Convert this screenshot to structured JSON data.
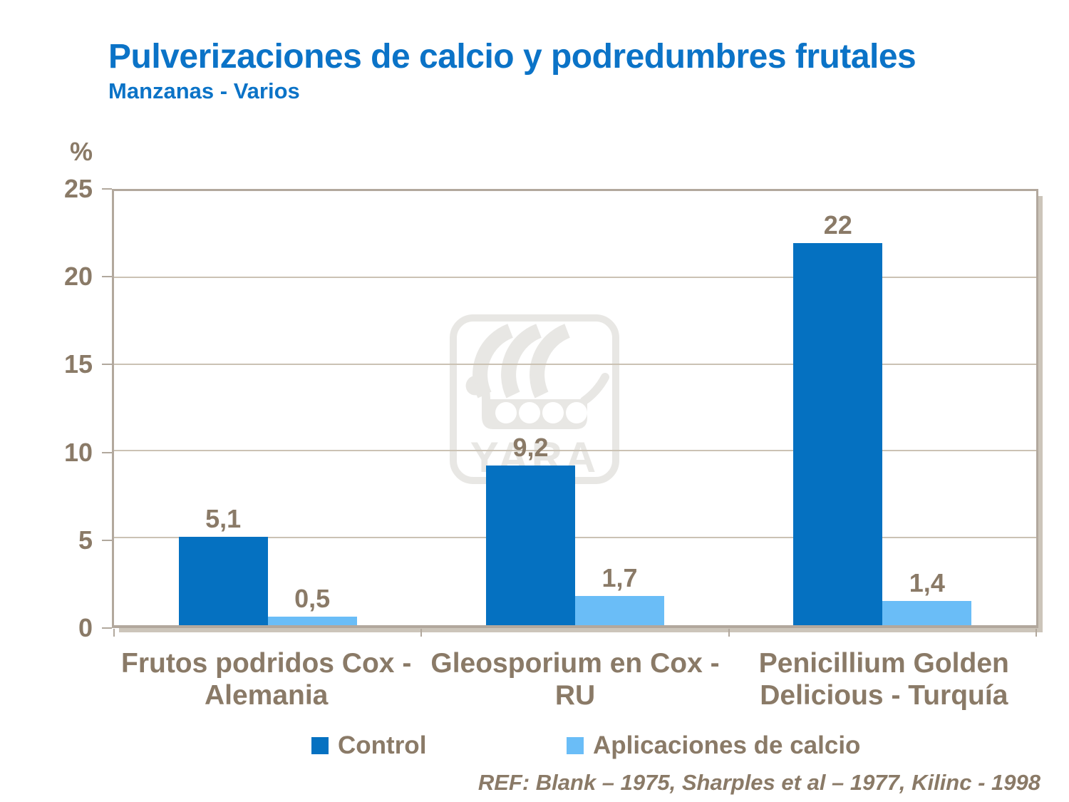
{
  "title": "Pulverizaciones de calcio y podredumbres frutales",
  "subtitle": "Manzanas - Varios",
  "reference": "REF: Blank – 1975, Sharples et al – 1977, Kilinc - 1998",
  "watermark": {
    "text": "YARA",
    "color": "#e8e7e4"
  },
  "colors": {
    "title_blue": "#0b73c7",
    "text_brown": "#8a7a67",
    "axis_tan": "#b2a89d",
    "gridline_tan": "#cbc2b4",
    "control_blue": "#0571c1",
    "calcium_light_blue": "#6abdf7"
  },
  "legend": {
    "items": [
      {
        "label": "Control",
        "color": "#0571c1"
      },
      {
        "label": "Aplicaciones de calcio",
        "color": "#6abdf7"
      }
    ]
  },
  "chart_data": {
    "type": "bar",
    "title": "Pulverizaciones de calcio y podredumbres frutales",
    "subtitle": "Manzanas - Varios",
    "xlabel": "",
    "ylabel": "%",
    "ylim": [
      0,
      25
    ],
    "yticks": [
      0,
      5,
      10,
      15,
      20,
      25
    ],
    "grid": true,
    "legend_position": "bottom",
    "categories": [
      "Frutos podridos Cox - Alemania",
      "Gleosporium en Cox - RU",
      "Penicillium Golden Delicious - Turquía"
    ],
    "category_lines": [
      [
        "Frutos podridos Cox -",
        "Alemania"
      ],
      [
        "Gleosporium en Cox -",
        "RU"
      ],
      [
        "Penicillium Golden",
        "Delicious - Turquía"
      ]
    ],
    "series": [
      {
        "name": "Control",
        "color": "#0571c1",
        "values": [
          5.1,
          9.2,
          22
        ],
        "labels": [
          "5,1",
          "9,2",
          "22"
        ]
      },
      {
        "name": "Aplicaciones de calcio",
        "color": "#6abdf7",
        "values": [
          0.5,
          1.7,
          1.4
        ],
        "labels": [
          "0,5",
          "1,7",
          "1,4"
        ]
      }
    ]
  }
}
